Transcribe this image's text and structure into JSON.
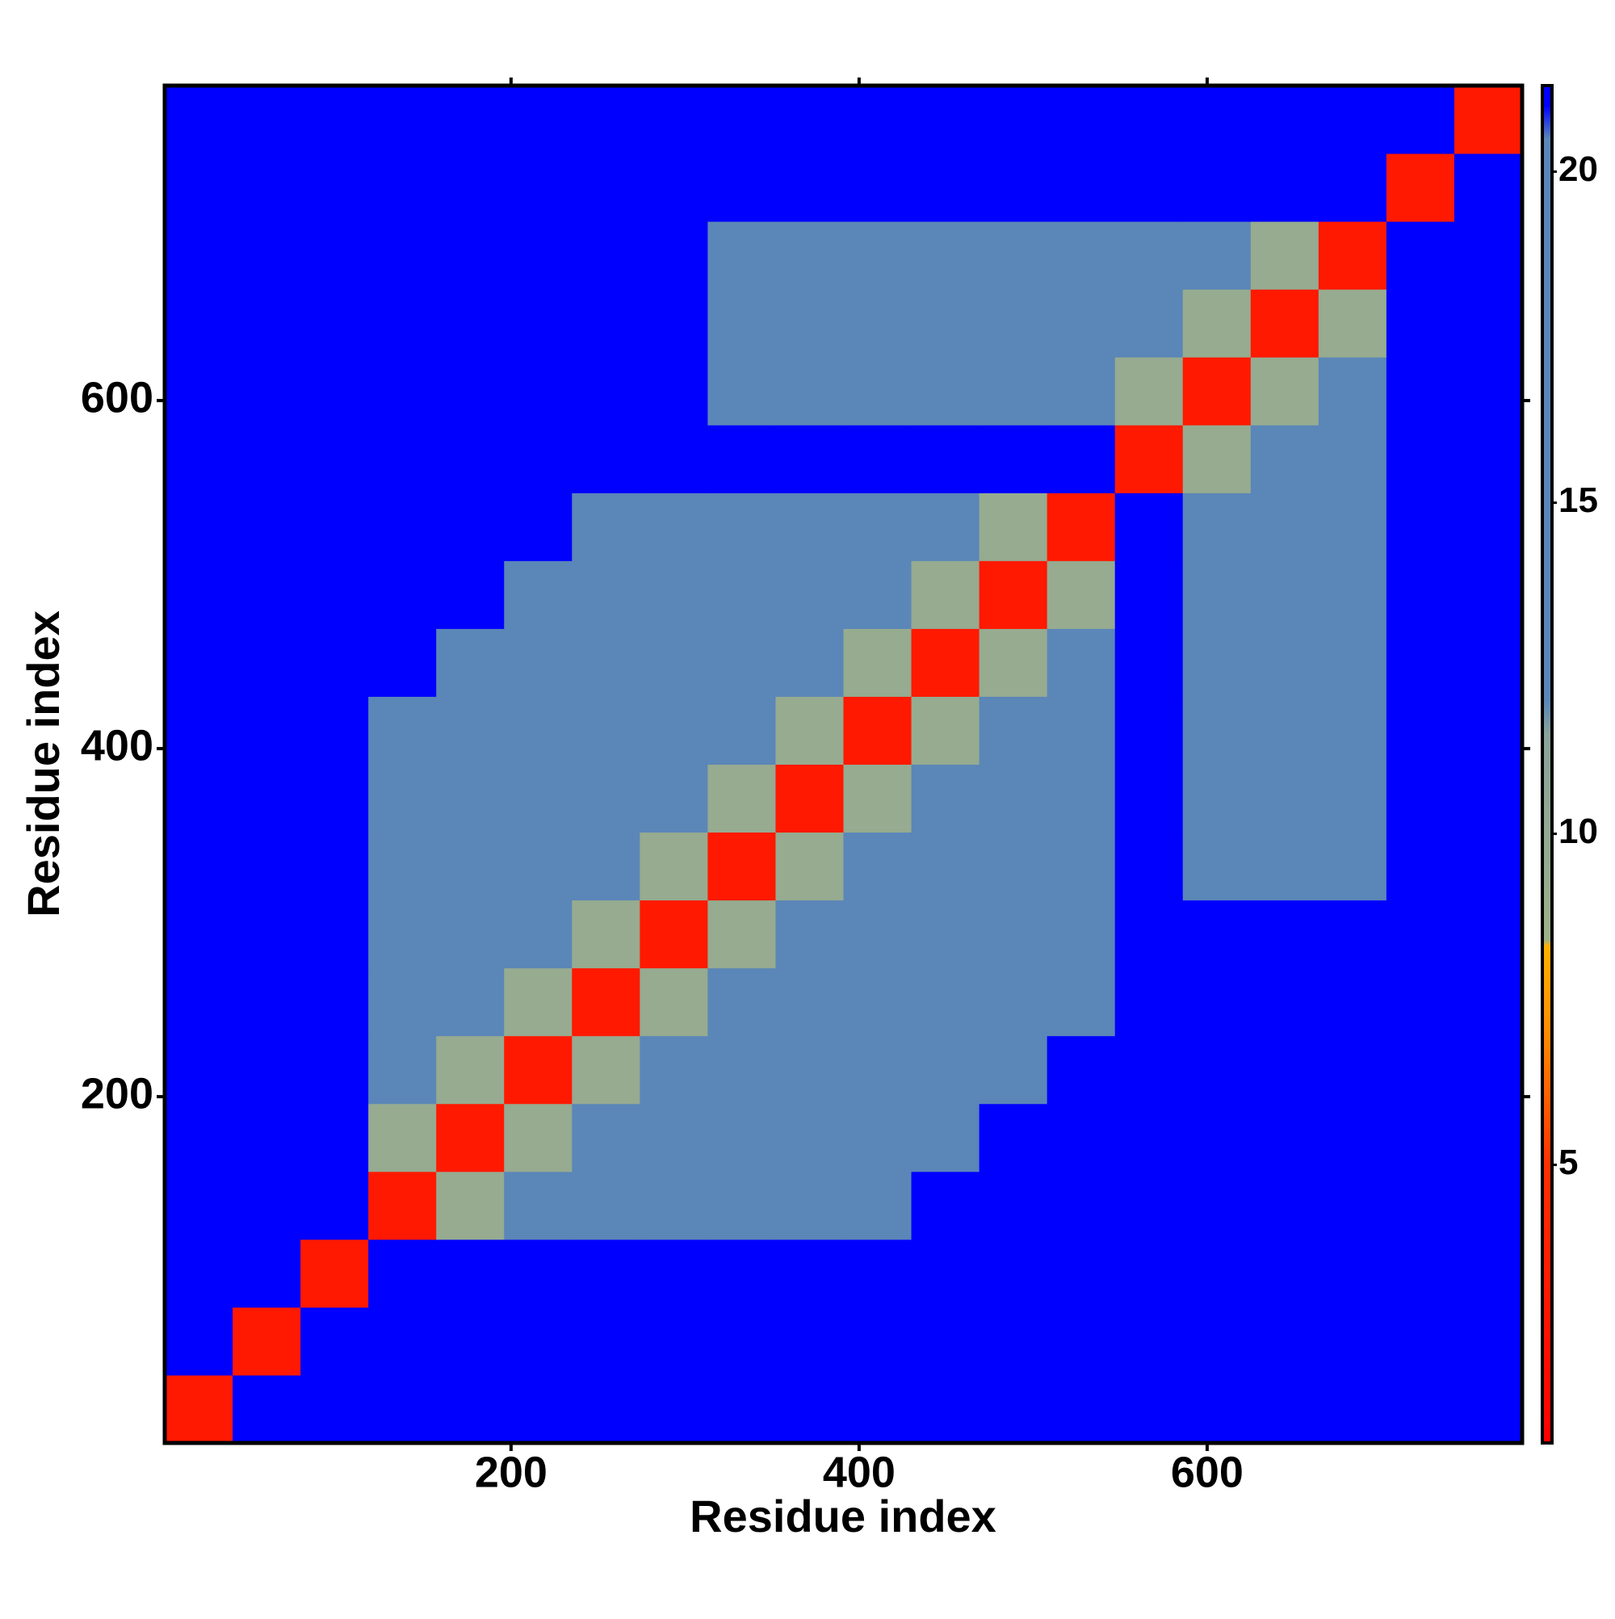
{
  "chart_data": {
    "type": "heatmap",
    "xlabel": "Residue index",
    "ylabel": "Residue index",
    "xlim": [
      1,
      781
    ],
    "ylim": [
      1,
      781
    ],
    "xticks": [
      200,
      400,
      600
    ],
    "yticks": [
      200,
      400,
      600
    ],
    "xbins": [
      1,
      40,
      79,
      118,
      157,
      196,
      235,
      274,
      313,
      352,
      391,
      430,
      469,
      508,
      547,
      586,
      625,
      664,
      703,
      742,
      781
    ],
    "ybins": [
      1,
      40,
      79,
      118,
      157,
      196,
      235,
      274,
      313,
      352,
      391,
      430,
      469,
      508,
      547,
      586,
      625,
      664,
      703,
      742,
      781
    ],
    "z": [
      [
        3,
        21,
        21,
        21,
        21,
        21,
        21,
        21,
        21,
        21,
        21,
        21,
        21,
        21,
        21,
        21,
        21,
        21,
        21,
        21
      ],
      [
        21,
        3,
        21,
        21,
        21,
        21,
        21,
        21,
        21,
        21,
        21,
        21,
        21,
        21,
        21,
        21,
        21,
        21,
        21,
        21
      ],
      [
        21,
        21,
        3,
        21,
        21,
        21,
        21,
        21,
        21,
        21,
        21,
        21,
        21,
        21,
        21,
        21,
        21,
        21,
        21,
        21
      ],
      [
        21,
        21,
        21,
        3,
        9.5,
        17,
        17,
        17,
        17,
        17,
        17,
        21,
        21,
        21,
        21,
        21,
        21,
        21,
        21,
        21
      ],
      [
        21,
        21,
        21,
        9.5,
        3,
        9.5,
        17,
        17,
        17,
        17,
        17,
        17,
        21,
        21,
        21,
        21,
        21,
        21,
        21,
        21
      ],
      [
        21,
        21,
        21,
        17,
        9.5,
        3,
        9.5,
        17,
        17,
        17,
        17,
        17,
        17,
        21,
        21,
        21,
        21,
        21,
        21,
        21
      ],
      [
        21,
        21,
        21,
        17,
        17,
        9.5,
        3,
        9.5,
        17,
        17,
        17,
        17,
        17,
        17,
        21,
        21,
        21,
        21,
        21,
        21
      ],
      [
        21,
        21,
        21,
        17,
        17,
        17,
        9.5,
        3,
        9.5,
        17,
        17,
        17,
        17,
        17,
        21,
        21,
        21,
        21,
        21,
        21
      ],
      [
        21,
        21,
        21,
        17,
        17,
        17,
        17,
        9.5,
        3,
        9.5,
        17,
        17,
        17,
        17,
        21,
        17,
        17,
        17,
        21,
        21
      ],
      [
        21,
        21,
        21,
        17,
        17,
        17,
        17,
        17,
        9.5,
        3,
        9.5,
        17,
        17,
        17,
        21,
        17,
        17,
        17,
        21,
        21
      ],
      [
        21,
        21,
        21,
        17,
        17,
        17,
        17,
        17,
        17,
        9.5,
        3,
        9.5,
        17,
        17,
        21,
        17,
        17,
        17,
        21,
        21
      ],
      [
        21,
        21,
        21,
        21,
        17,
        17,
        17,
        17,
        17,
        17,
        9.5,
        3,
        9.5,
        17,
        21,
        17,
        17,
        17,
        21,
        21
      ],
      [
        21,
        21,
        21,
        21,
        21,
        17,
        17,
        17,
        17,
        17,
        17,
        9.5,
        3,
        9.5,
        21,
        17,
        17,
        17,
        21,
        21
      ],
      [
        21,
        21,
        21,
        21,
        21,
        21,
        17,
        17,
        17,
        17,
        17,
        17,
        9.5,
        3,
        21,
        17,
        17,
        17,
        21,
        21
      ],
      [
        21,
        21,
        21,
        21,
        21,
        21,
        21,
        21,
        21,
        21,
        21,
        21,
        21,
        21,
        3,
        9.5,
        17,
        17,
        21,
        21
      ],
      [
        21,
        21,
        21,
        21,
        21,
        21,
        21,
        21,
        17,
        17,
        17,
        17,
        17,
        17,
        9.5,
        3,
        9.5,
        17,
        21,
        21
      ],
      [
        21,
        21,
        21,
        21,
        21,
        21,
        21,
        21,
        17,
        17,
        17,
        17,
        17,
        17,
        17,
        9.5,
        3,
        9.5,
        21,
        21
      ],
      [
        21,
        21,
        21,
        21,
        21,
        21,
        21,
        21,
        17,
        17,
        17,
        17,
        17,
        17,
        17,
        17,
        9.5,
        3,
        21,
        21
      ],
      [
        21,
        21,
        21,
        21,
        21,
        21,
        21,
        21,
        21,
        21,
        21,
        21,
        21,
        21,
        21,
        21,
        21,
        21,
        3,
        21
      ],
      [
        21,
        21,
        21,
        21,
        21,
        21,
        21,
        21,
        21,
        21,
        21,
        21,
        21,
        21,
        21,
        21,
        21,
        21,
        21,
        3
      ]
    ],
    "clim": [
      0.8,
      21.3
    ],
    "cticks": [
      5,
      10,
      15,
      20
    ],
    "colorscale": [
      [
        0.8,
        "#ff0000"
      ],
      [
        5,
        "#ff3000"
      ],
      [
        7,
        "#ff8c00"
      ],
      [
        8.3,
        "#ffb000"
      ],
      [
        8.4,
        "#9cb08a"
      ],
      [
        11.5,
        "#8aa39a"
      ],
      [
        12,
        "#5b86b8"
      ],
      [
        20.5,
        "#5b86b8"
      ],
      [
        21,
        "#0000ff"
      ]
    ]
  }
}
